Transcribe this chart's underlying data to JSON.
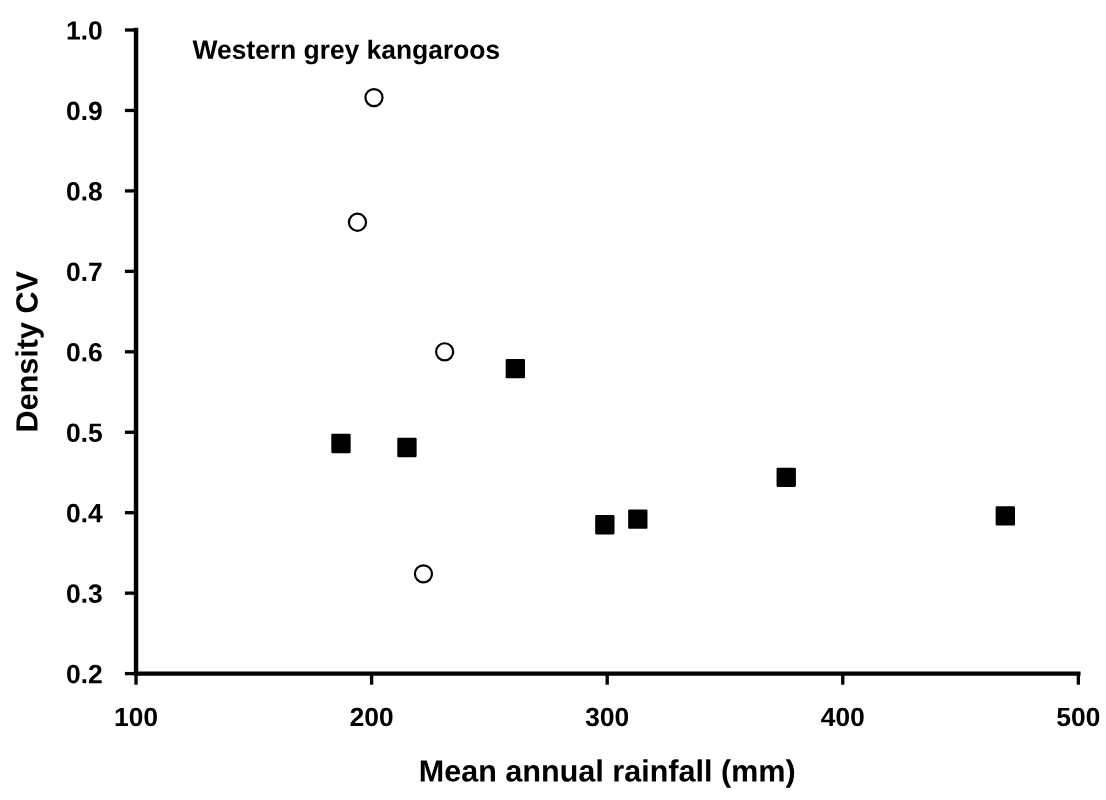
{
  "chart_data": {
    "type": "scatter",
    "xlabel": "Mean annual rainfall (mm)",
    "ylabel": "Density CV",
    "annotations": [
      "Western grey kangaroos"
    ],
    "series": [
      {
        "color": "#ffffff",
        "marker": "circle",
        "x": [
          201,
          194,
          231,
          222
        ],
        "values": [
          0.916,
          0.761,
          0.6,
          0.324
        ]
      },
      {
        "color": "#000000",
        "marker": "square",
        "x": [
          187,
          215,
          261,
          299,
          313,
          376,
          469
        ],
        "values": [
          0.486,
          0.481,
          0.579,
          0.385,
          0.392,
          0.444,
          0.396
        ]
      }
    ],
    "xlim": [
      100,
      500
    ],
    "xticks": [
      100,
      200,
      300,
      400,
      500
    ],
    "ylim": [
      0.2,
      1.0
    ],
    "yticks": [
      {
        "value": 0.2,
        "label": "0.2"
      },
      {
        "value": 0.3,
        "label": "0.3"
      },
      {
        "value": 0.4,
        "label": "0.4"
      },
      {
        "value": 0.5,
        "label": "0.5"
      },
      {
        "value": 0.6,
        "label": "0.6"
      },
      {
        "value": 0.7,
        "label": "0.7"
      },
      {
        "value": 0.8,
        "label": "0.8"
      },
      {
        "value": 0.9,
        "label": "0.9"
      },
      {
        "value": 1.0,
        "label": "1.0"
      }
    ],
    "grid": false,
    "legend": false
  }
}
